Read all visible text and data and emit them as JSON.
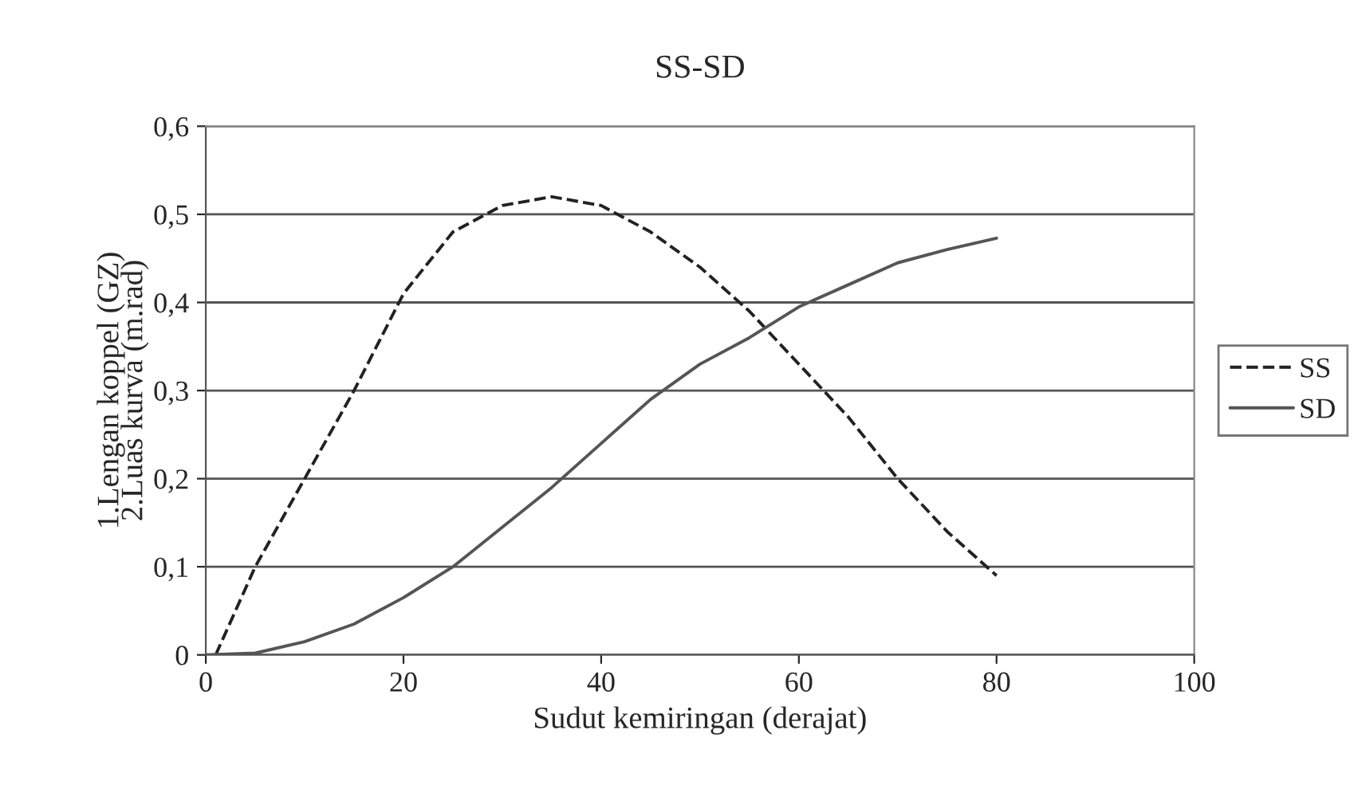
{
  "chart_data": {
    "type": "line",
    "title": "SS-SD",
    "xlabel": "Sudut kemiringan (derajat)",
    "ylabel": "1.Lengan koppel (GZ)\n2.Luas kurva (m.rad)",
    "xlim": [
      0,
      100
    ],
    "xticks": [
      0,
      20,
      40,
      60,
      80,
      100
    ],
    "ylim": [
      0,
      0.6
    ],
    "yticks": [
      {
        "value": 0,
        "label": "0"
      },
      {
        "value": 0.1,
        "label": "0,1"
      },
      {
        "value": 0.2,
        "label": "0,2"
      },
      {
        "value": 0.3,
        "label": "0,3"
      },
      {
        "value": 0.4,
        "label": "0,4"
      },
      {
        "value": 0.5,
        "label": "0,5"
      },
      {
        "value": 0.6,
        "label": "0,6"
      }
    ],
    "grid": "y",
    "legend": "right",
    "marker": "none",
    "series": [
      {
        "name": "SS",
        "color": "#222222",
        "line_style": "dashed",
        "x": [
          1,
          5,
          10,
          15,
          20,
          25,
          30,
          35,
          40,
          45,
          50,
          55,
          60,
          65,
          70,
          75,
          80
        ],
        "values": [
          0,
          0.1,
          0.2,
          0.3,
          0.41,
          0.48,
          0.51,
          0.52,
          0.51,
          0.48,
          0.44,
          0.39,
          0.33,
          0.27,
          0.2,
          0.14,
          0.09
        ]
      },
      {
        "name": "SD",
        "color": "#555555",
        "line_style": "solid",
        "x": [
          0,
          5,
          10,
          15,
          20,
          25,
          30,
          35,
          40,
          45,
          50,
          55,
          60,
          65,
          70,
          75,
          80
        ],
        "values": [
          0,
          0.002,
          0.015,
          0.035,
          0.065,
          0.1,
          0.145,
          0.19,
          0.24,
          0.29,
          0.33,
          0.36,
          0.395,
          0.42,
          0.445,
          0.46,
          0.473
        ]
      }
    ]
  }
}
